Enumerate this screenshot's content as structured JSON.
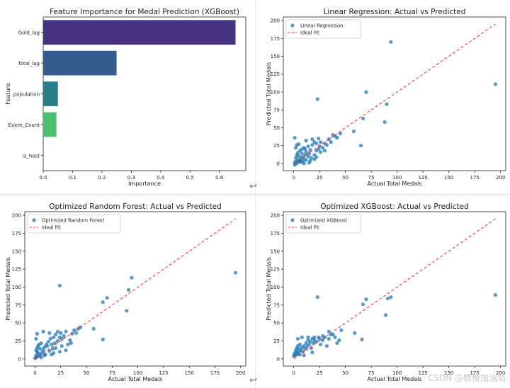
{
  "chart_data": [
    {
      "type": "bar",
      "orientation": "horizontal",
      "title": "Feature Importance for Medal Prediction (XGBoost)",
      "xlabel": "Importance",
      "ylabel": "Feature",
      "categories": [
        "Gold_lag",
        "Total_lag",
        "population",
        "Event_Count",
        "is_host"
      ],
      "values": [
        0.655,
        0.25,
        0.05,
        0.045,
        0.0
      ],
      "colors": [
        "#46327e",
        "#365c8d",
        "#277f8e",
        "#4ac16d",
        "#a0da39"
      ],
      "xlim": [
        0,
        0.69
      ],
      "xticks": [
        0.0,
        0.1,
        0.2,
        0.3,
        0.4,
        0.5,
        0.6
      ],
      "xtick_labels": [
        "0.0",
        "0.1",
        "0.2",
        "0.3",
        "0.4",
        "0.5",
        "0.6"
      ],
      "grid": false
    },
    {
      "type": "scatter",
      "title": "Linear Regression: Actual vs Predicted",
      "xlabel": "Actual Total Medals",
      "ylabel": "Predicted Total Medals",
      "xlim": [
        -10,
        205
      ],
      "ylim": [
        -10,
        205
      ],
      "xticks": [
        0,
        25,
        50,
        75,
        100,
        125,
        150,
        175,
        200
      ],
      "yticks": [
        0,
        25,
        50,
        75,
        100,
        125,
        150,
        175,
        200
      ],
      "legend": {
        "placement": "top-left",
        "entries": [
          "Linear Regression",
          "Ideal Fit"
        ]
      },
      "series": [
        {
          "name": "Linear Regression",
          "color": "#1f77b4",
          "points": [
            [
              1,
              -2
            ],
            [
              1,
              1
            ],
            [
              2,
              3
            ],
            [
              3,
              0
            ],
            [
              4,
              5
            ],
            [
              5,
              2
            ],
            [
              6,
              4
            ],
            [
              2,
              8
            ],
            [
              3,
              12
            ],
            [
              5,
              10
            ],
            [
              7,
              6
            ],
            [
              8,
              9
            ],
            [
              9,
              3
            ],
            [
              10,
              7
            ],
            [
              11,
              12
            ],
            [
              12,
              5
            ],
            [
              4,
              15
            ],
            [
              6,
              18
            ],
            [
              8,
              20
            ],
            [
              10,
              22
            ],
            [
              12,
              16
            ],
            [
              14,
              10
            ],
            [
              15,
              14
            ],
            [
              16,
              19
            ],
            [
              17,
              8
            ],
            [
              18,
              26
            ],
            [
              20,
              12
            ],
            [
              22,
              18
            ],
            [
              24,
              20
            ],
            [
              25,
              24
            ],
            [
              26,
              16
            ],
            [
              28,
              22
            ],
            [
              30,
              28
            ],
            [
              32,
              26
            ],
            [
              34,
              34
            ],
            [
              36,
              30
            ],
            [
              38,
              40
            ],
            [
              40,
              38
            ],
            [
              42,
              36
            ],
            [
              45,
              42
            ],
            [
              2,
              22
            ],
            [
              3,
              26
            ],
            [
              1,
              36
            ],
            [
              12,
              32
            ],
            [
              18,
              34
            ],
            [
              20,
              30
            ],
            [
              24,
              35
            ],
            [
              14,
              24
            ],
            [
              22,
              28
            ],
            [
              26,
              30
            ],
            [
              30,
              18
            ],
            [
              5,
              27
            ],
            [
              8,
              14
            ],
            [
              11,
              20
            ],
            [
              16,
              4
            ],
            [
              20,
              6
            ],
            [
              15,
              1
            ],
            [
              10,
              0
            ],
            [
              7,
              2
            ],
            [
              22,
              9
            ],
            [
              23,
              90
            ],
            [
              58,
              45
            ],
            [
              65,
              25
            ],
            [
              67,
              63
            ],
            [
              70,
              100
            ],
            [
              88,
              58
            ],
            [
              90,
              83
            ],
            [
              94,
              170
            ],
            [
              195,
              111
            ]
          ]
        },
        {
          "name": "Ideal Fit",
          "color": "#ff2a2a",
          "style": "dashed",
          "points": [
            [
              0,
              0
            ],
            [
              195,
              195
            ]
          ]
        }
      ]
    },
    {
      "type": "scatter",
      "title": "Optimized Random Forest: Actual vs Predicted",
      "xlabel": "Actual Total Medals",
      "ylabel": "Predicted Total Medals",
      "xlim": [
        -10,
        205
      ],
      "ylim": [
        -10,
        205
      ],
      "xticks": [
        0,
        25,
        50,
        75,
        100,
        125,
        150,
        175,
        200
      ],
      "yticks": [
        0,
        25,
        50,
        75,
        100,
        125,
        150,
        175,
        200
      ],
      "legend": {
        "placement": "top-left",
        "entries": [
          "Optimized Random Forest",
          "Ideal Fit"
        ]
      },
      "series": [
        {
          "name": "Optimized Random Forest",
          "color": "#1f77b4",
          "points": [
            [
              0,
              1
            ],
            [
              1,
              2
            ],
            [
              1,
              5
            ],
            [
              2,
              3
            ],
            [
              3,
              8
            ],
            [
              2,
              10
            ],
            [
              4,
              4
            ],
            [
              5,
              6
            ],
            [
              6,
              2
            ],
            [
              1,
              12
            ],
            [
              2,
              15
            ],
            [
              3,
              18
            ],
            [
              4,
              20
            ],
            [
              5,
              14
            ],
            [
              6,
              22
            ],
            [
              7,
              9
            ],
            [
              8,
              12
            ],
            [
              9,
              16
            ],
            [
              10,
              6
            ],
            [
              11,
              20
            ],
            [
              12,
              18
            ],
            [
              13,
              24
            ],
            [
              14,
              11
            ],
            [
              15,
              28
            ],
            [
              16,
              20
            ],
            [
              17,
              14
            ],
            [
              18,
              30
            ],
            [
              19,
              22
            ],
            [
              20,
              34
            ],
            [
              22,
              25
            ],
            [
              24,
              30
            ],
            [
              25,
              36
            ],
            [
              26,
              28
            ],
            [
              28,
              32
            ],
            [
              30,
              38
            ],
            [
              32,
              20
            ],
            [
              34,
              26
            ],
            [
              36,
              35
            ],
            [
              38,
              40
            ],
            [
              40,
              36
            ],
            [
              42,
              42
            ],
            [
              44,
              44
            ],
            [
              1,
              28
            ],
            [
              2,
              35
            ],
            [
              8,
              38
            ],
            [
              14,
              36
            ],
            [
              22,
              38
            ],
            [
              9,
              5
            ],
            [
              18,
              8
            ],
            [
              20,
              15
            ],
            [
              26,
              18
            ],
            [
              30,
              12
            ],
            [
              35,
              22
            ],
            [
              24,
              10
            ],
            [
              16,
              6
            ],
            [
              24,
              102
            ],
            [
              57,
              42
            ],
            [
              66,
              27
            ],
            [
              66,
              79
            ],
            [
              70,
              85
            ],
            [
              89,
              67
            ],
            [
              91,
              96
            ],
            [
              94,
              113
            ],
            [
              195,
              120
            ]
          ]
        },
        {
          "name": "Ideal Fit",
          "color": "#ff2a2a",
          "style": "dashed",
          "points": [
            [
              0,
              0
            ],
            [
              195,
              195
            ]
          ]
        }
      ]
    },
    {
      "type": "scatter",
      "title": "Optimized XGBoost: Actual vs Predicted",
      "xlabel": "Actual Total Medals",
      "ylabel": "Predicted Total Medals",
      "xlim": [
        -10,
        205
      ],
      "ylim": [
        -10,
        205
      ],
      "xticks": [
        0,
        25,
        50,
        75,
        100,
        125,
        150,
        175,
        200
      ],
      "yticks": [
        0,
        25,
        50,
        75,
        100,
        125,
        150,
        175,
        200
      ],
      "legend": {
        "placement": "top-left",
        "entries": [
          "Optimized XGBoost",
          "Ideal Fit"
        ]
      },
      "series": [
        {
          "name": "Optimized XGBoost",
          "color": "#1f77b4",
          "points": [
            [
              0,
              4
            ],
            [
              1,
              6
            ],
            [
              1,
              8
            ],
            [
              2,
              5
            ],
            [
              3,
              9
            ],
            [
              2,
              12
            ],
            [
              4,
              7
            ],
            [
              5,
              10
            ],
            [
              6,
              6
            ],
            [
              3,
              15
            ],
            [
              4,
              18
            ],
            [
              5,
              14
            ],
            [
              6,
              20
            ],
            [
              7,
              12
            ],
            [
              8,
              16
            ],
            [
              9,
              10
            ],
            [
              10,
              18
            ],
            [
              11,
              14
            ],
            [
              12,
              22
            ],
            [
              13,
              17
            ],
            [
              14,
              26
            ],
            [
              15,
              20
            ],
            [
              16,
              24
            ],
            [
              17,
              15
            ],
            [
              18,
              28
            ],
            [
              19,
              22
            ],
            [
              20,
              26
            ],
            [
              22,
              24
            ],
            [
              24,
              30
            ],
            [
              25,
              28
            ],
            [
              26,
              20
            ],
            [
              28,
              26
            ],
            [
              30,
              30
            ],
            [
              32,
              18
            ],
            [
              34,
              28
            ],
            [
              36,
              34
            ],
            [
              38,
              34
            ],
            [
              40,
              30
            ],
            [
              42,
              22
            ],
            [
              44,
              26
            ],
            [
              4,
              28
            ],
            [
              8,
              30
            ],
            [
              14,
              30
            ],
            [
              20,
              30
            ],
            [
              28,
              32
            ],
            [
              34,
              38
            ],
            [
              46,
              40
            ],
            [
              10,
              5
            ],
            [
              18,
              9
            ],
            [
              23,
              86
            ],
            [
              59,
              36
            ],
            [
              66,
              27
            ],
            [
              67,
              76
            ],
            [
              70,
              83
            ],
            [
              89,
              61
            ],
            [
              91,
              84
            ],
            [
              94,
              86
            ],
            [
              195,
              89
            ]
          ]
        },
        {
          "name": "Ideal Fit",
          "color": "#ff2a2a",
          "style": "dashed",
          "points": [
            [
              0,
              0
            ],
            [
              195,
              195
            ]
          ]
        }
      ]
    }
  ],
  "watermark": "CSDN @数模加油站",
  "arrow_glyph": "↩"
}
